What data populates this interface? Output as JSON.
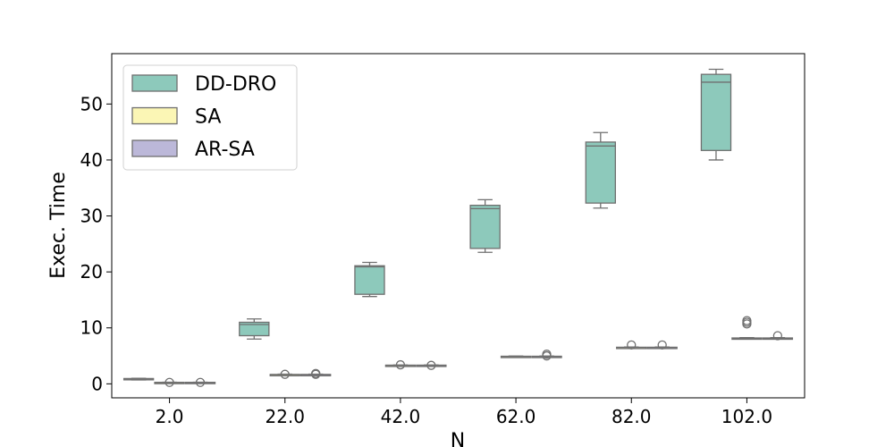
{
  "chart_data": {
    "type": "box",
    "xlabel": "N",
    "ylabel": "Exec. Time",
    "ylim": [
      -2.5,
      59
    ],
    "yticks": [
      0,
      10,
      20,
      30,
      40,
      50
    ],
    "categories": [
      "2.0",
      "22.0",
      "42.0",
      "62.0",
      "82.0",
      "102.0"
    ],
    "legend_position": "upper-left",
    "grid": false,
    "series": [
      {
        "name": "DD-DRO",
        "color": "#8dc9bb",
        "boxes": [
          {
            "whislo": 0.7,
            "q1": 0.8,
            "med": 0.85,
            "q3": 0.95,
            "whishi": 1.0,
            "fliers": []
          },
          {
            "whislo": 8.0,
            "q1": 8.6,
            "med": 10.6,
            "q3": 11.0,
            "whishi": 11.6,
            "fliers": []
          },
          {
            "whislo": 15.6,
            "q1": 16.0,
            "med": 20.9,
            "q3": 21.1,
            "whishi": 21.7,
            "fliers": []
          },
          {
            "whislo": 23.5,
            "q1": 24.2,
            "med": 31.3,
            "q3": 31.9,
            "whishi": 32.9,
            "fliers": []
          },
          {
            "whislo": 31.4,
            "q1": 32.3,
            "med": 42.5,
            "q3": 43.2,
            "whishi": 44.9,
            "fliers": []
          },
          {
            "whislo": 40.0,
            "q1": 41.7,
            "med": 53.9,
            "q3": 55.3,
            "whishi": 56.2,
            "fliers": []
          }
        ]
      },
      {
        "name": "SA",
        "color": "#fbf6b5",
        "boxes": [
          {
            "whislo": 0.22,
            "q1": 0.24,
            "med": 0.25,
            "q3": 0.27,
            "whishi": 0.29,
            "fliers": [
              0.25
            ]
          },
          {
            "whislo": 1.58,
            "q1": 1.62,
            "med": 1.65,
            "q3": 1.68,
            "whishi": 1.72,
            "fliers": [
              1.7
            ]
          },
          {
            "whislo": 3.22,
            "q1": 3.26,
            "med": 3.3,
            "q3": 3.34,
            "whishi": 3.37,
            "fliers": [
              3.4
            ]
          },
          {
            "whislo": 4.82,
            "q1": 4.87,
            "med": 4.9,
            "q3": 4.93,
            "whishi": 4.97,
            "fliers": []
          },
          {
            "whislo": 6.42,
            "q1": 6.47,
            "med": 6.5,
            "q3": 6.54,
            "whishi": 6.58,
            "fliers": [
              6.95
            ]
          },
          {
            "whislo": 8.05,
            "q1": 8.1,
            "med": 8.15,
            "q3": 8.2,
            "whishi": 8.25,
            "fliers": []
          }
        ]
      },
      {
        "name": "AR-SA",
        "color": "#bcb8d9",
        "boxes": [
          {
            "whislo": 0.22,
            "q1": 0.24,
            "med": 0.25,
            "q3": 0.27,
            "whishi": 0.29,
            "fliers": [
              0.25
            ]
          },
          {
            "whislo": 1.58,
            "q1": 1.62,
            "med": 1.65,
            "q3": 1.68,
            "whishi": 1.72,
            "fliers": [
              1.7,
              1.85
            ]
          },
          {
            "whislo": 3.22,
            "q1": 3.26,
            "med": 3.3,
            "q3": 3.34,
            "whishi": 3.37,
            "fliers": [
              3.3
            ]
          },
          {
            "whislo": 4.82,
            "q1": 4.87,
            "med": 4.9,
            "q3": 4.93,
            "whishi": 4.97,
            "fliers": [
              5.0,
              5.3
            ]
          },
          {
            "whislo": 6.42,
            "q1": 6.47,
            "med": 6.5,
            "q3": 6.54,
            "whishi": 6.58,
            "fliers": [
              6.95
            ]
          },
          {
            "whislo": 8.05,
            "q1": 8.1,
            "med": 8.15,
            "q3": 8.2,
            "whishi": 8.25,
            "fliers": [
              8.6
            ]
          }
        ]
      }
    ],
    "extra_fliers_note": "",
    "outlier_groups": [
      {
        "series": 1,
        "category": 5,
        "values": [
          10.7,
          11.0,
          11.3
        ]
      }
    ]
  }
}
